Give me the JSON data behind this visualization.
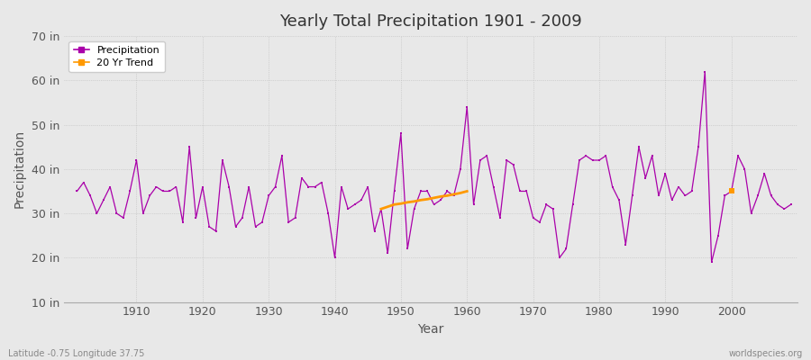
{
  "title": "Yearly Total Precipitation 1901 - 2009",
  "xlabel": "Year",
  "ylabel": "Precipitation",
  "background_color": "#e8e8e8",
  "plot_bg_color": "#e8e8e8",
  "line_color": "#aa00aa",
  "trend_color": "#ff9900",
  "ylim": [
    10,
    70
  ],
  "yticks": [
    10,
    20,
    30,
    40,
    50,
    60,
    70
  ],
  "ytick_labels": [
    "10 in",
    "20 in",
    "30 in",
    "40 in",
    "50 in",
    "60 in",
    "70 in"
  ],
  "xlim": [
    1899,
    2010
  ],
  "xticks": [
    1910,
    1920,
    1930,
    1940,
    1950,
    1960,
    1970,
    1980,
    1990,
    2000
  ],
  "legend_labels": [
    "Precipitation",
    "20 Yr Trend"
  ],
  "footer_left": "Latitude -0.75 Longitude 37.75",
  "footer_right": "worldspecies.org",
  "years": [
    1901,
    1902,
    1903,
    1904,
    1905,
    1906,
    1907,
    1908,
    1909,
    1910,
    1911,
    1912,
    1913,
    1914,
    1915,
    1916,
    1917,
    1918,
    1919,
    1920,
    1921,
    1922,
    1923,
    1924,
    1925,
    1926,
    1927,
    1928,
    1929,
    1930,
    1931,
    1932,
    1933,
    1934,
    1935,
    1936,
    1937,
    1938,
    1939,
    1940,
    1941,
    1942,
    1943,
    1944,
    1945,
    1946,
    1947,
    1948,
    1949,
    1950,
    1951,
    1952,
    1953,
    1954,
    1955,
    1956,
    1957,
    1958,
    1959,
    1960,
    1961,
    1962,
    1963,
    1964,
    1965,
    1966,
    1967,
    1968,
    1969,
    1970,
    1971,
    1972,
    1973,
    1974,
    1975,
    1976,
    1977,
    1978,
    1979,
    1980,
    1981,
    1982,
    1983,
    1984,
    1985,
    1986,
    1987,
    1988,
    1989,
    1990,
    1991,
    1992,
    1993,
    1994,
    1995,
    1996,
    1997,
    1998,
    1999,
    2000,
    2001,
    2002,
    2003,
    2004,
    2005,
    2006,
    2007,
    2008,
    2009
  ],
  "precip": [
    35,
    37,
    34,
    30,
    33,
    36,
    30,
    29,
    35,
    42,
    30,
    34,
    36,
    35,
    35,
    36,
    28,
    45,
    29,
    36,
    27,
    26,
    42,
    36,
    27,
    29,
    36,
    27,
    28,
    34,
    36,
    43,
    28,
    29,
    38,
    36,
    36,
    37,
    30,
    20,
    36,
    31,
    32,
    33,
    36,
    26,
    31,
    21,
    35,
    48,
    22,
    31,
    35,
    35,
    32,
    33,
    35,
    34,
    40,
    54,
    32,
    42,
    43,
    36,
    29,
    42,
    41,
    35,
    35,
    29,
    28,
    32,
    31,
    20,
    22,
    32,
    42,
    43,
    42,
    42,
    43,
    36,
    33,
    23,
    34,
    45,
    38,
    43,
    34,
    39,
    33,
    36,
    34,
    35,
    45,
    62,
    19,
    25,
    34,
    35,
    43,
    40,
    30,
    34,
    39,
    34,
    32,
    31,
    32
  ],
  "trend_segment_years": [
    1947,
    1948,
    1949,
    1950,
    1951,
    1952,
    1953,
    1954,
    1955,
    1956,
    1957,
    1958,
    1959,
    1960
  ],
  "trend_segment_values": [
    31.0,
    31.5,
    32.0,
    32.2,
    32.5,
    32.7,
    33.0,
    33.2,
    33.5,
    33.8,
    34.0,
    34.3,
    34.6,
    35.0
  ],
  "trend_dot_year": [
    2000
  ],
  "trend_dot_value": [
    35.0
  ]
}
